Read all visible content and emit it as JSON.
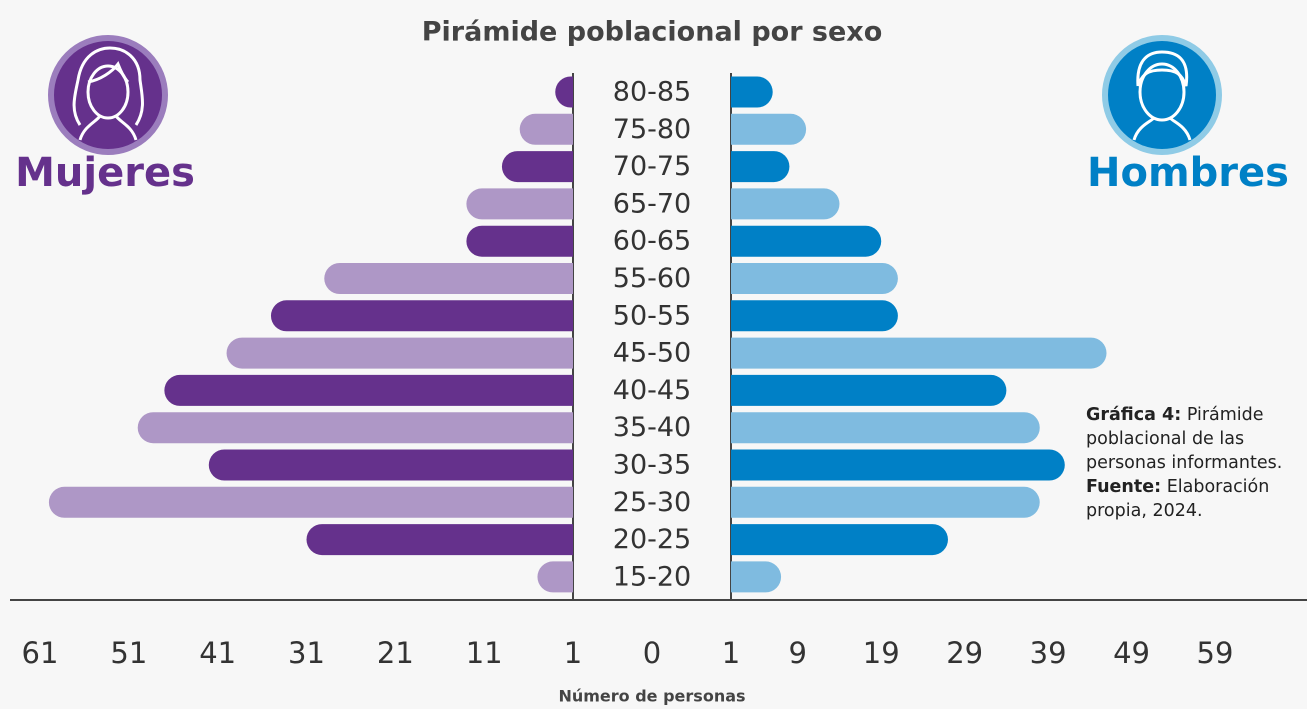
{
  "chart_data": {
    "type": "pyramid",
    "title": "Pirámide poblacional por sexo",
    "xlabel": "Número de personas",
    "categories": [
      "80-85",
      "75-80",
      "70-75",
      "65-70",
      "60-65",
      "55-60",
      "50-55",
      "45-50",
      "40-45",
      "35-40",
      "30-35",
      "25-30",
      "20-25",
      "15-20"
    ],
    "series": [
      {
        "name": "Mujeres",
        "side": "left",
        "colors": [
          "#65318c",
          "#ae97c6"
        ],
        "values": [
          3,
          7,
          9,
          13,
          13,
          29,
          35,
          40,
          47,
          50,
          42,
          60,
          31,
          5
        ]
      },
      {
        "name": "Hombres",
        "side": "right",
        "colors": [
          "#0080c6",
          "#7fbbe0"
        ],
        "values": [
          6,
          10,
          8,
          14,
          19,
          21,
          21,
          46,
          34,
          38,
          41,
          38,
          27,
          7
        ]
      }
    ],
    "xlim_left": [
      1,
      61
    ],
    "xticks_left": [
      61,
      51,
      41,
      31,
      21,
      11,
      1
    ],
    "xticks_center": [
      0
    ],
    "xlim_right": [
      1,
      59
    ],
    "xticks_right": [
      1,
      9,
      19,
      29,
      39,
      49,
      59
    ],
    "annotation": {
      "figure_label": "Gráfica 4:",
      "figure_text": "Pirámide poblacional de las personas informantes.",
      "source_label": "Fuente:",
      "source_text": "Elaboración propia, 2024."
    }
  }
}
